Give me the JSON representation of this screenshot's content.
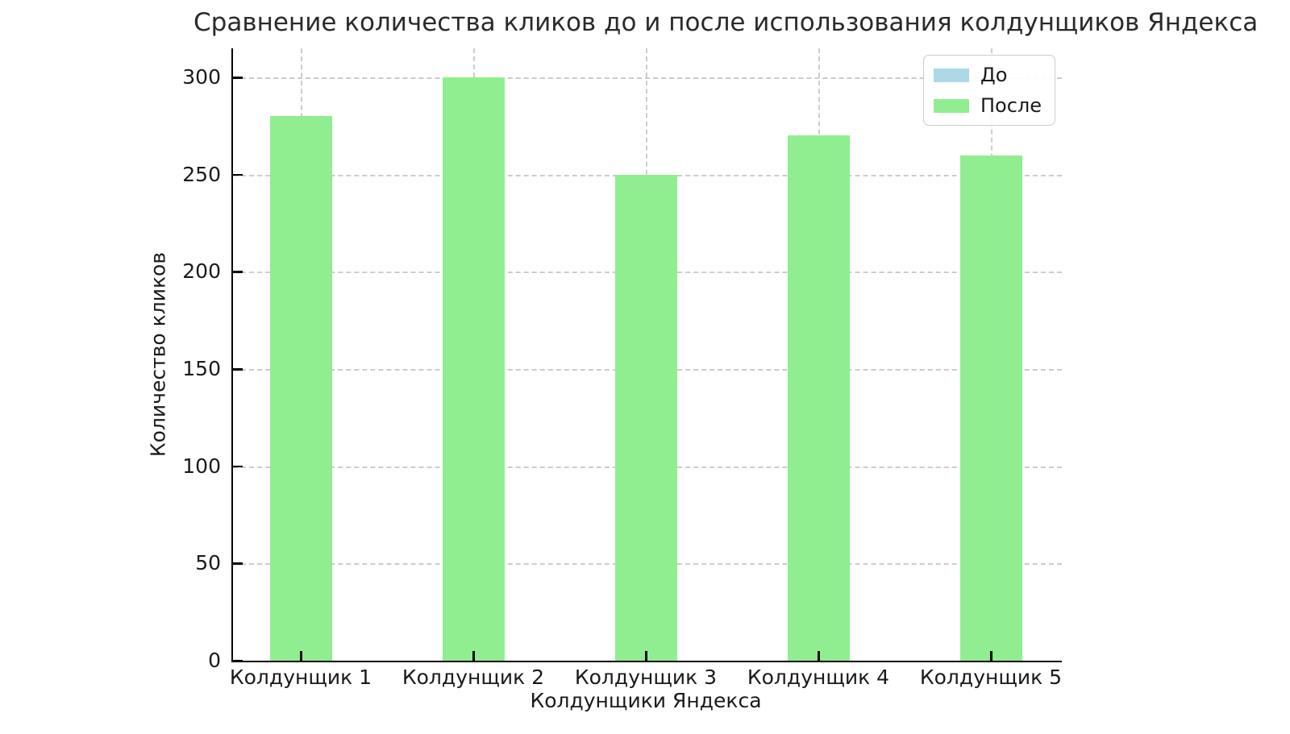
{
  "title": "Сравнение количества кликов до и после использования колдунщиков Яндекса",
  "chart_data": {
    "type": "bar",
    "categories": [
      "Колдунщик 1",
      "Колдунщик 2",
      "Колдунщик 3",
      "Колдунщик 4",
      "Колдунщик 5"
    ],
    "series": [
      {
        "name": "До",
        "color": "#ADD8E6",
        "values": [
          0,
          0,
          0,
          0,
          0
        ]
      },
      {
        "name": "После",
        "color": "#90EE90",
        "values": [
          280,
          300,
          250,
          270,
          260
        ]
      }
    ],
    "xlabel": "Колдунщики Яндекса",
    "ylabel": "Количество кликов",
    "ylim": [
      0,
      315
    ],
    "yticks": [
      0,
      50,
      100,
      150,
      200,
      250,
      300
    ],
    "grid": "dashed both axes",
    "legend_position": "top-right"
  }
}
